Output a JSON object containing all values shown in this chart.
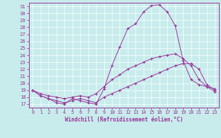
{
  "bg_color": "#c8ecec",
  "line_color": "#993399",
  "xlim": [
    -0.5,
    23.5
  ],
  "ylim": [
    16.5,
    31.5
  ],
  "xticks": [
    0,
    1,
    2,
    3,
    4,
    5,
    6,
    7,
    8,
    9,
    10,
    11,
    12,
    13,
    14,
    15,
    16,
    17,
    18,
    19,
    20,
    21,
    22,
    23
  ],
  "yticks": [
    17,
    18,
    19,
    20,
    21,
    22,
    23,
    24,
    25,
    26,
    27,
    28,
    29,
    30,
    31
  ],
  "xlabel": "Windchill (Refroidissement éolien,°C)",
  "curve1_x": [
    0,
    1,
    2,
    3,
    4,
    5,
    6,
    7,
    8,
    9,
    10,
    11,
    12,
    13,
    14,
    15,
    16,
    17,
    18,
    19,
    20,
    21,
    22,
    23
  ],
  "curve1_y": [
    19.0,
    18.2,
    17.8,
    17.2,
    17.0,
    17.8,
    17.5,
    17.2,
    17.0,
    19.2,
    22.5,
    25.2,
    27.8,
    28.5,
    30.2,
    31.1,
    31.2,
    30.2,
    28.2,
    23.2,
    20.5,
    19.8,
    19.5,
    19.2
  ],
  "curve2_x": [
    0,
    1,
    2,
    3,
    4,
    5,
    6,
    7,
    8,
    9,
    10,
    11,
    12,
    13,
    14,
    15,
    16,
    17,
    18,
    19,
    20,
    21,
    22,
    23
  ],
  "curve2_y": [
    19.0,
    18.5,
    18.2,
    18.0,
    17.8,
    18.0,
    18.2,
    18.0,
    18.5,
    19.5,
    20.5,
    21.2,
    22.0,
    22.5,
    23.0,
    23.5,
    23.8,
    24.0,
    24.2,
    23.5,
    22.5,
    20.5,
    19.5,
    18.8
  ],
  "curve3_x": [
    0,
    1,
    2,
    3,
    4,
    5,
    6,
    7,
    8,
    9,
    10,
    11,
    12,
    13,
    14,
    15,
    16,
    17,
    18,
    19,
    20,
    21,
    22,
    23
  ],
  "curve3_y": [
    19.0,
    18.2,
    17.8,
    17.5,
    17.2,
    17.5,
    17.8,
    17.5,
    17.2,
    18.0,
    18.5,
    19.0,
    19.5,
    20.0,
    20.5,
    21.0,
    21.5,
    22.0,
    22.5,
    22.8,
    22.8,
    22.0,
    19.8,
    19.0
  ],
  "tick_fontsize": 5,
  "xlabel_fontsize": 5.5
}
